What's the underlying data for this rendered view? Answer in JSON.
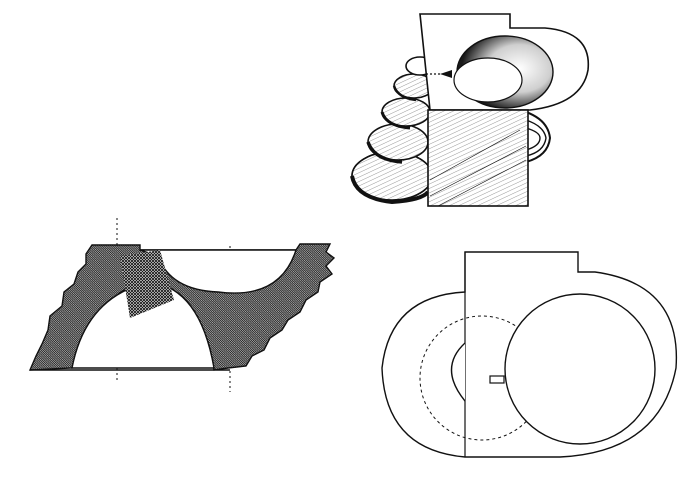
{
  "figure": {
    "background": "#ffffff",
    "ink_color": "#111111",
    "views": [
      {
        "id": "perspective",
        "description_shown": false
      },
      {
        "id": "section",
        "description_shown": false
      },
      {
        "id": "plan",
        "description_shown": false
      }
    ]
  }
}
